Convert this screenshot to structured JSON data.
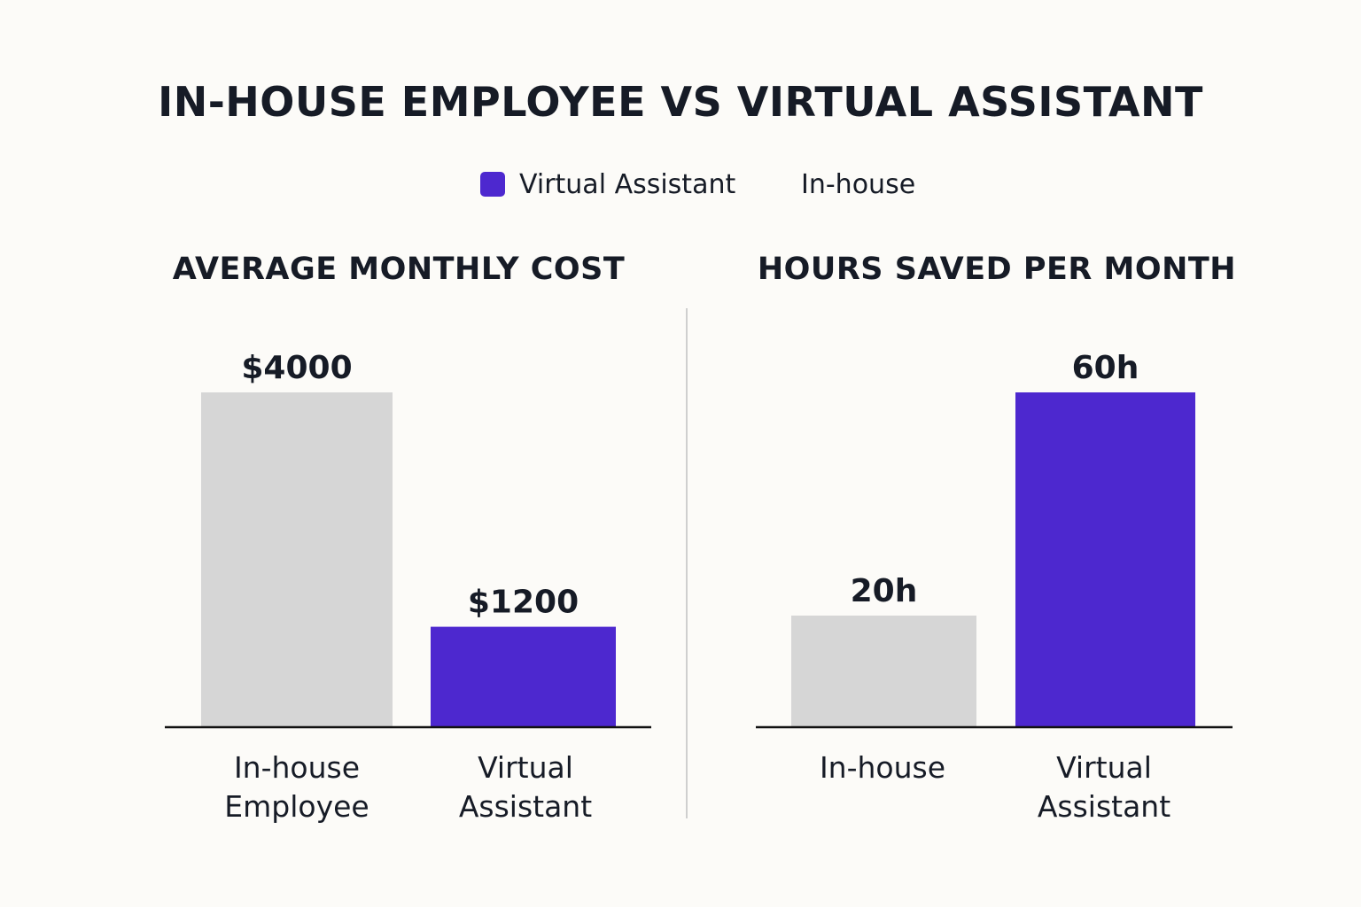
{
  "title": "IN-HOUSE EMPLOYEE VS VIRTUAL ASSISTANT",
  "legend": {
    "items": [
      {
        "label": "Virtual Assistant",
        "color": "#4d28cf"
      },
      {
        "label": "In-house",
        "color": "#d6d6d6"
      }
    ]
  },
  "colors": {
    "in_house": "#d6d6d6",
    "virtual_assistant": "#4d28cf",
    "axis": "#111111"
  },
  "chart_data": [
    {
      "type": "bar",
      "title": "AVERAGE MONTHLY COST",
      "categories": [
        "In-house Employee",
        "Virtual Assistant"
      ],
      "category_lines": [
        [
          "In-house",
          "Employee"
        ],
        [
          "Virtual",
          "Assistant"
        ]
      ],
      "values": [
        4000,
        1200
      ],
      "value_labels": [
        "$4000",
        "$1200"
      ],
      "colors": [
        "#d6d6d6",
        "#4d28cf"
      ],
      "ylim": [
        0,
        4000
      ],
      "grid": false
    },
    {
      "type": "bar",
      "title": "HOURS SAVED PER MONTH",
      "categories": [
        "In-house",
        "Virtual Assistant"
      ],
      "category_lines": [
        [
          "In-house"
        ],
        [
          "Virtual",
          "Assistant"
        ]
      ],
      "values": [
        20,
        60
      ],
      "value_labels": [
        "20h",
        "60h"
      ],
      "colors": [
        "#d6d6d6",
        "#4d28cf"
      ],
      "ylim": [
        0,
        60
      ],
      "grid": false
    }
  ]
}
